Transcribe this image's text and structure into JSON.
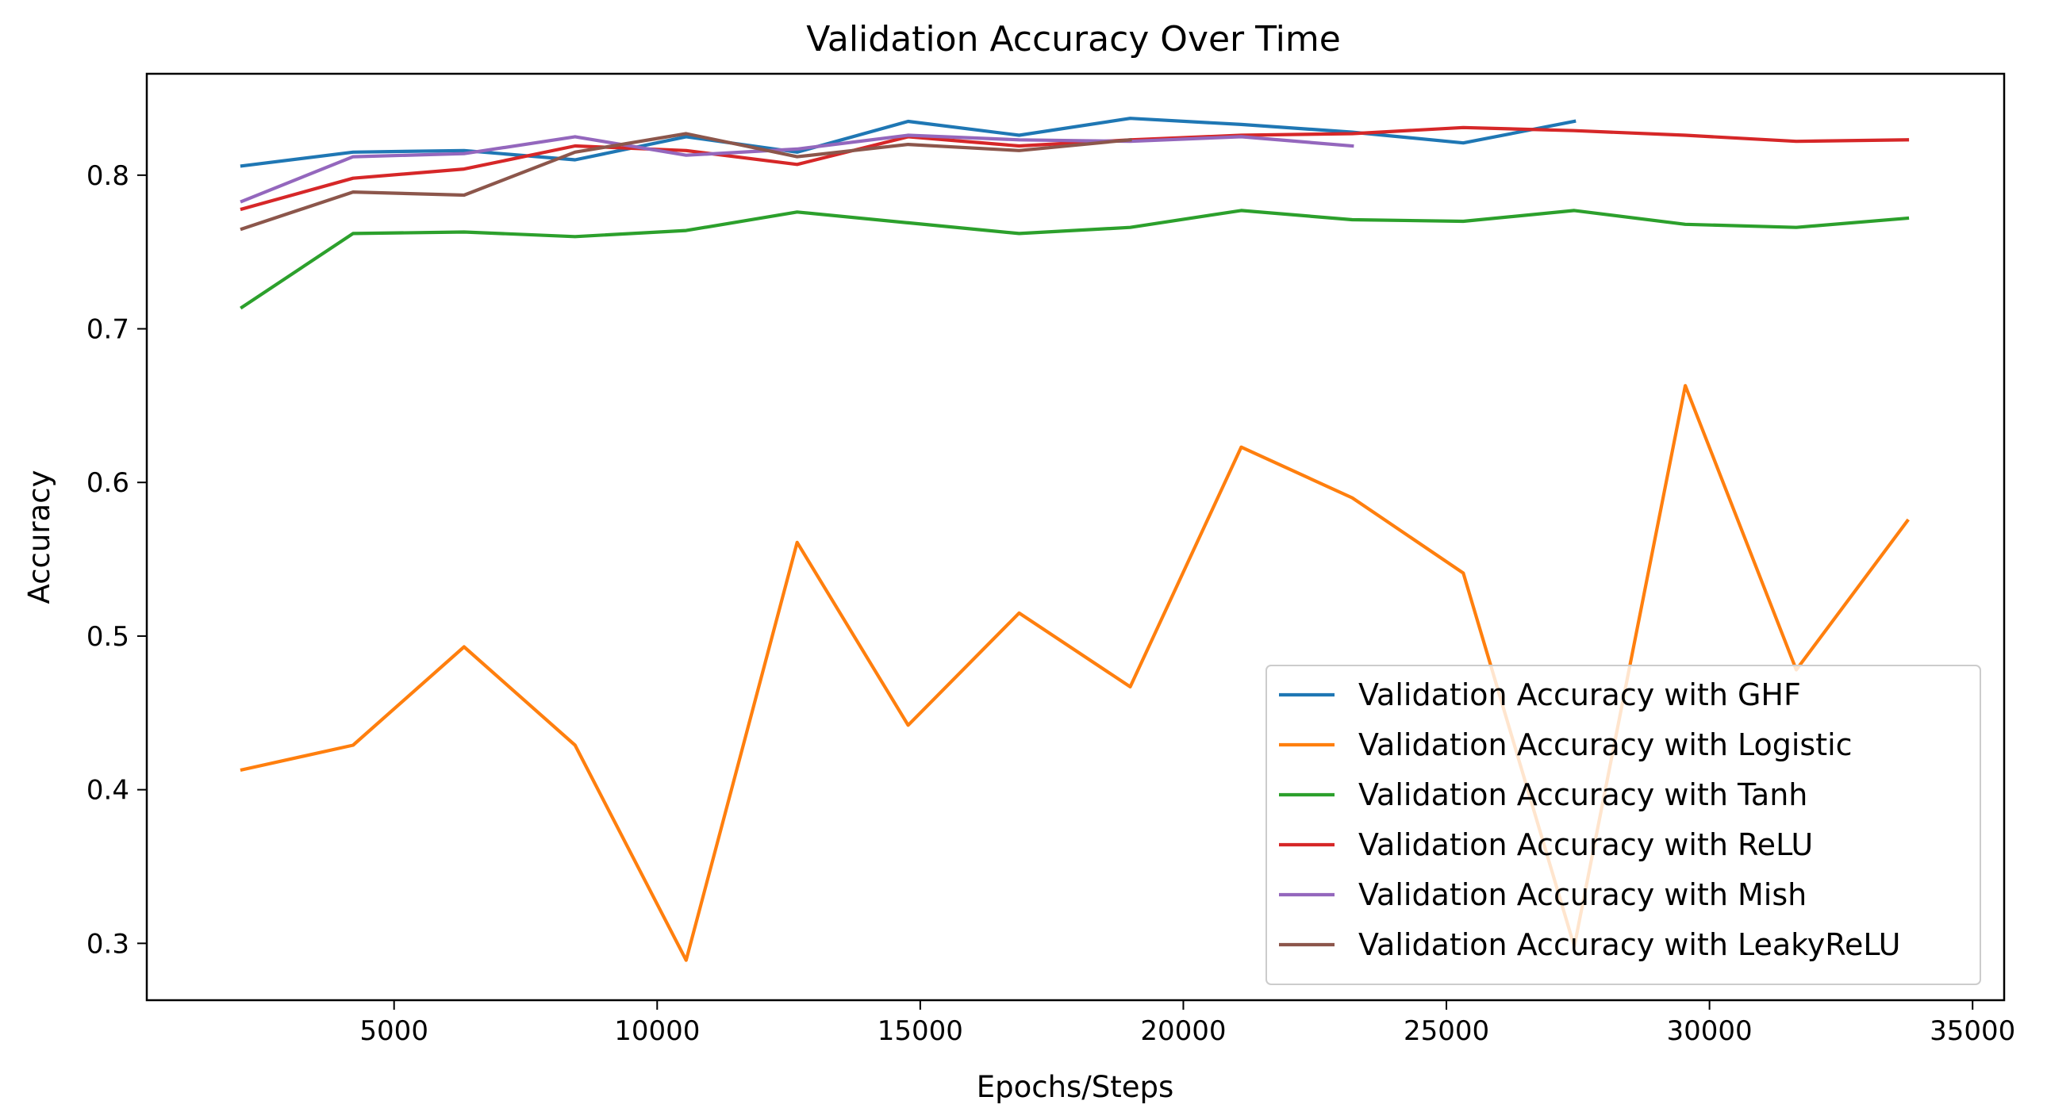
{
  "chart_data": {
    "type": "line",
    "title": "Validation Accuracy Over Time",
    "xlabel": "Epochs/Steps",
    "ylabel": "Accuracy",
    "xlim": [
      300,
      35600
    ],
    "ylim": [
      0.263,
      0.866
    ],
    "xticks": [
      5000,
      10000,
      15000,
      20000,
      25000,
      30000,
      35000
    ],
    "yticks": [
      0.3,
      0.4,
      0.5,
      0.6,
      0.7,
      0.8
    ],
    "grid": false,
    "legend_position": "lower-right",
    "series": [
      {
        "name": "Validation Accuracy with GHF",
        "color": "#1f77b4",
        "x": [
          2110,
          4220,
          6330,
          8440,
          10550,
          12660,
          14770,
          16880,
          18990,
          21100,
          23210,
          25320,
          27430
        ],
        "y": [
          0.806,
          0.815,
          0.816,
          0.81,
          0.825,
          0.815,
          0.835,
          0.826,
          0.837,
          0.833,
          0.828,
          0.821,
          0.835
        ]
      },
      {
        "name": "Validation Accuracy with Logistic",
        "color": "#ff7f0e",
        "x": [
          2110,
          4220,
          6330,
          8440,
          10550,
          12660,
          14770,
          16880,
          18990,
          21100,
          23210,
          25320,
          27430,
          29540,
          31650,
          33760
        ],
        "y": [
          0.413,
          0.429,
          0.493,
          0.429,
          0.289,
          0.561,
          0.442,
          0.515,
          0.467,
          0.623,
          0.59,
          0.541,
          0.298,
          0.663,
          0.478,
          0.575
        ]
      },
      {
        "name": "Validation Accuracy with Tanh",
        "color": "#2ca02c",
        "x": [
          2110,
          4220,
          6330,
          8440,
          10550,
          12660,
          14770,
          16880,
          18990,
          21100,
          23210,
          25320,
          27430,
          29540,
          31650,
          33760
        ],
        "y": [
          0.714,
          0.762,
          0.763,
          0.76,
          0.764,
          0.776,
          0.769,
          0.762,
          0.766,
          0.777,
          0.771,
          0.77,
          0.777,
          0.768,
          0.766,
          0.772
        ]
      },
      {
        "name": "Validation Accuracy with ReLU",
        "color": "#d62728",
        "x": [
          2110,
          4220,
          6330,
          8440,
          10550,
          12660,
          14770,
          16880,
          18990,
          21100,
          23210,
          25320,
          27430,
          29540,
          31650,
          33760
        ],
        "y": [
          0.778,
          0.798,
          0.804,
          0.819,
          0.816,
          0.807,
          0.825,
          0.819,
          0.823,
          0.826,
          0.827,
          0.831,
          0.829,
          0.826,
          0.822,
          0.823
        ]
      },
      {
        "name": "Validation Accuracy with Mish",
        "color": "#9467bd",
        "x": [
          2110,
          4220,
          6330,
          8440,
          10550,
          12660,
          14770,
          16880,
          18990,
          21100,
          23210
        ],
        "y": [
          0.783,
          0.812,
          0.814,
          0.825,
          0.813,
          0.817,
          0.826,
          0.823,
          0.822,
          0.825,
          0.819
        ]
      },
      {
        "name": "Validation Accuracy with LeakyReLU",
        "color": "#8c564b",
        "x": [
          2110,
          4220,
          6330,
          8440,
          10550,
          12660,
          14770,
          16880,
          18990
        ],
        "y": [
          0.765,
          0.789,
          0.787,
          0.815,
          0.827,
          0.812,
          0.82,
          0.816,
          0.823
        ]
      }
    ]
  }
}
